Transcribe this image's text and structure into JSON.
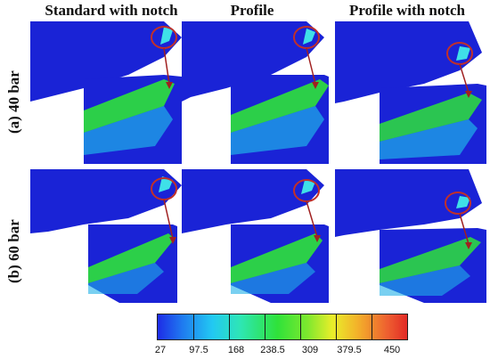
{
  "columns": [
    "Standard with notch",
    "Profile",
    "Profile with notch"
  ],
  "rows": [
    "(a) 40 bar",
    "(b) 60 bar"
  ],
  "colorbar": {
    "ticks": [
      "27",
      "97.5",
      "168",
      "238.5",
      "309",
      "379.5",
      "450"
    ],
    "colors": [
      "#1e2ce6",
      "#22c9f2",
      "#2fe23a",
      "#e9ee2a",
      "#e22a26"
    ]
  },
  "colors": {
    "base_blue": "#1a23d6",
    "highlight_green": "#2fe23a",
    "arrow": "#a02020",
    "circle": "#c0302a"
  }
}
